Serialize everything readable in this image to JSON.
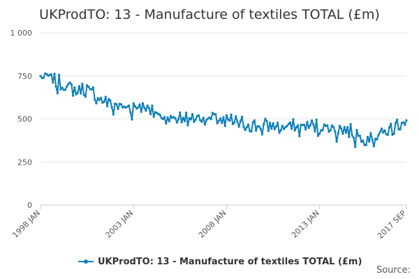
{
  "chart_data": {
    "type": "line",
    "title": "UKProdTO: 13 - Manufacture of textiles TOTAL (£m)",
    "xlabel": "",
    "ylabel": "",
    "x_range": [
      "1998 JAN",
      "2017 SEP"
    ],
    "ylim": [
      0,
      1000
    ],
    "y_ticks": [
      0,
      250,
      500,
      750,
      1000
    ],
    "y_tick_labels": [
      "0",
      "250",
      "500",
      "750",
      "1 000"
    ],
    "x_tick_labels": [
      "1998 JAN",
      "2003 JAN",
      "2008 JAN",
      "2013 JAN",
      "2017 SEP"
    ],
    "grid": "horizontal",
    "legend": "bottom",
    "series": [
      {
        "name": "UKProdTO: 13 - Manufacture of textiles TOTAL (£m)",
        "color": "#0b7fb8",
        "annual_mean": [
          {
            "year": 1998,
            "value": 740
          },
          {
            "year": 1999,
            "value": 680
          },
          {
            "year": 2000,
            "value": 670
          },
          {
            "year": 2001,
            "value": 600
          },
          {
            "year": 2002,
            "value": 565
          },
          {
            "year": 2003,
            "value": 580
          },
          {
            "year": 2004,
            "value": 515
          },
          {
            "year": 2005,
            "value": 505
          },
          {
            "year": 2006,
            "value": 510
          },
          {
            "year": 2007,
            "value": 500
          },
          {
            "year": 2008,
            "value": 480
          },
          {
            "year": 2009,
            "value": 460
          },
          {
            "year": 2010,
            "value": 460
          },
          {
            "year": 2011,
            "value": 455
          },
          {
            "year": 2012,
            "value": 460
          },
          {
            "year": 2013,
            "value": 450
          },
          {
            "year": 2014,
            "value": 435
          },
          {
            "year": 2015,
            "value": 385
          },
          {
            "year": 2016,
            "value": 420
          },
          {
            "year": 2017,
            "value": 490
          }
        ]
      }
    ]
  },
  "legend_label": "UKProdTO: 13 - Manufacture of textiles TOTAL (£m)",
  "source_label": "Source:"
}
